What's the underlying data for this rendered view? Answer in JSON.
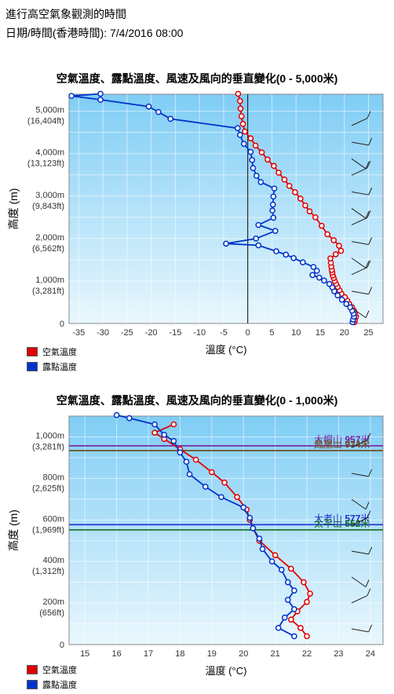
{
  "header": {
    "line1": "進行高空氣象觀測的時間",
    "line2": "日期/時間(香港時間): 7/4/2016 08:00"
  },
  "legend": {
    "air_temp": "空氣溫度",
    "dew_point": "露點溫度",
    "air_color": "#e00000",
    "dew_color": "#0033cc"
  },
  "chart_data": [
    {
      "type": "line",
      "title": "空氣溫度、露點溫度、風速及風向的垂直變化(0 - 5,000米)",
      "xlabel": "溫度 (°C)",
      "ylabel": "高度 (m)",
      "xlim": [
        -37,
        28
      ],
      "ylim": [
        0,
        5400
      ],
      "xticks": [
        -35,
        -30,
        -25,
        -20,
        -15,
        -10,
        -5,
        0,
        5,
        10,
        15,
        20,
        25
      ],
      "yticks": [
        {
          "value": 0,
          "label": "0"
        },
        {
          "value": 1000,
          "label": "1,000m",
          "sub": "(3,281ft)"
        },
        {
          "value": 2000,
          "label": "2,000m",
          "sub": "(6,562ft)"
        },
        {
          "value": 3000,
          "label": "3,000m",
          "sub": "(9,843ft)"
        },
        {
          "value": 4000,
          "label": "4,000m",
          "sub": "(13,123ft)"
        },
        {
          "value": 5000,
          "label": "5,000m",
          "sub": "(16,404ft)"
        }
      ],
      "series": [
        {
          "name": "空氣溫度",
          "color": "#e00000",
          "points": [
            [
              22.1,
              30
            ],
            [
              22.2,
              90
            ],
            [
              22.4,
              160
            ],
            [
              22.2,
              230
            ],
            [
              22.0,
              300
            ],
            [
              21.6,
              380
            ],
            [
              21.0,
              460
            ],
            [
              20.6,
              540
            ],
            [
              20.1,
              620
            ],
            [
              19.4,
              700
            ],
            [
              19.0,
              780
            ],
            [
              18.6,
              860
            ],
            [
              18.3,
              930
            ],
            [
              18.0,
              1000
            ],
            [
              17.8,
              1070
            ],
            [
              17.6,
              1130
            ],
            [
              17.5,
              1200
            ],
            [
              17.4,
              1260
            ],
            [
              17.3,
              1340
            ],
            [
              17.2,
              1430
            ],
            [
              17.1,
              1530
            ],
            [
              18.2,
              1630
            ],
            [
              19.3,
              1710
            ],
            [
              18.9,
              1830
            ],
            [
              17.8,
              1960
            ],
            [
              16.5,
              2100
            ],
            [
              15.3,
              2300
            ],
            [
              14.0,
              2500
            ],
            [
              12.8,
              2640
            ],
            [
              11.9,
              2780
            ],
            [
              10.9,
              2940
            ],
            [
              9.8,
              3090
            ],
            [
              8.6,
              3240
            ],
            [
              7.6,
              3390
            ],
            [
              6.4,
              3550
            ],
            [
              5.4,
              3710
            ],
            [
              4.1,
              3860
            ],
            [
              2.9,
              4030
            ],
            [
              1.6,
              4190
            ],
            [
              0.6,
              4360
            ],
            [
              -0.6,
              4520
            ],
            [
              -1.0,
              4700
            ],
            [
              -1.3,
              4880
            ],
            [
              -1.5,
              5060
            ],
            [
              -1.6,
              5240
            ],
            [
              -2.0,
              5410
            ]
          ]
        },
        {
          "name": "露點溫度",
          "color": "#0033cc",
          "points": [
            [
              21.7,
              30
            ],
            [
              21.8,
              90
            ],
            [
              22.0,
              160
            ],
            [
              21.9,
              230
            ],
            [
              21.6,
              300
            ],
            [
              21.2,
              380
            ],
            [
              20.4,
              460
            ],
            [
              19.5,
              560
            ],
            [
              18.6,
              660
            ],
            [
              17.9,
              760
            ],
            [
              17.5,
              850
            ],
            [
              16.9,
              930
            ],
            [
              15.8,
              1010
            ],
            [
              14.8,
              1080
            ],
            [
              13.4,
              1140
            ],
            [
              14.3,
              1240
            ],
            [
              13.6,
              1330
            ],
            [
              11.4,
              1440
            ],
            [
              9.5,
              1540
            ],
            [
              7.9,
              1620
            ],
            [
              5.9,
              1700
            ],
            [
              2.2,
              1840
            ],
            [
              -4.5,
              1880
            ],
            [
              1.7,
              2000
            ],
            [
              5.7,
              2180
            ],
            [
              2.2,
              2320
            ],
            [
              5.3,
              2490
            ],
            [
              5.1,
              2660
            ],
            [
              5.2,
              2800
            ],
            [
              5.3,
              2990
            ],
            [
              5.5,
              3180
            ],
            [
              2.7,
              3330
            ],
            [
              1.8,
              3480
            ],
            [
              1.1,
              3660
            ],
            [
              0.9,
              3850
            ],
            [
              0.6,
              4040
            ],
            [
              -0.8,
              4230
            ],
            [
              -1.6,
              4440
            ],
            [
              -2.1,
              4600
            ],
            [
              -16.0,
              4820
            ],
            [
              -18.5,
              4980
            ],
            [
              -20.5,
              5110
            ],
            [
              -30.5,
              5270
            ],
            [
              -36.5,
              5360
            ],
            [
              -30.5,
              5410
            ]
          ]
        }
      ],
      "wind_barbs": 12
    },
    {
      "type": "line",
      "title": "空氣溫度、露點溫度、風速及風向的垂直變化(0 - 1,000米)",
      "xlabel": "溫度 (°C)",
      "ylabel": "高度 (m)",
      "xlim": [
        14.5,
        24.4
      ],
      "ylim": [
        0,
        1100
      ],
      "xticks": [
        15,
        16,
        17,
        18,
        19,
        20,
        21,
        22,
        23,
        24
      ],
      "yticks": [
        {
          "value": 0,
          "label": "0"
        },
        {
          "value": 200,
          "label": "200m",
          "sub": "(656ft)"
        },
        {
          "value": 400,
          "label": "400m",
          "sub": "(1,312ft)"
        },
        {
          "value": 600,
          "label": "600m",
          "sub": "(1,969ft)"
        },
        {
          "value": 800,
          "label": "800m",
          "sub": "(2,625ft)"
        },
        {
          "value": 1000,
          "label": "1,000m",
          "sub": "(3,281ft)"
        }
      ],
      "reference_lines": [
        {
          "name": "大帽山",
          "height": 957,
          "label": "957米",
          "color": "#7a1fa0"
        },
        {
          "name": "鳳凰山",
          "height": 934,
          "label": "934米",
          "color": "#6b4a12"
        },
        {
          "name": "大老山",
          "height": 577,
          "label": "577米",
          "color": "#1a2fd0"
        },
        {
          "name": "太平山",
          "height": 552,
          "label": "552米",
          "color": "#0f6b1e"
        }
      ],
      "series": [
        {
          "name": "空氣溫度",
          "color": "#e00000",
          "points": [
            [
              22.0,
              40
            ],
            [
              21.8,
              80
            ],
            [
              21.5,
              120
            ],
            [
              21.7,
              160
            ],
            [
              22.0,
              205
            ],
            [
              22.1,
              245
            ],
            [
              21.9,
              300
            ],
            [
              21.5,
              365
            ],
            [
              21.0,
              430
            ],
            [
              20.5,
              500
            ],
            [
              20.3,
              560
            ],
            [
              20.2,
              600
            ],
            [
              20.1,
              650
            ],
            [
              19.8,
              710
            ],
            [
              19.4,
              780
            ],
            [
              19.0,
              830
            ],
            [
              18.5,
              890
            ],
            [
              18.0,
              940
            ],
            [
              17.5,
              990
            ],
            [
              17.2,
              1020
            ],
            [
              17.8,
              1060
            ]
          ]
        },
        {
          "name": "露點溫度",
          "color": "#0033cc",
          "points": [
            [
              21.6,
              40
            ],
            [
              21.1,
              80
            ],
            [
              21.3,
              130
            ],
            [
              21.6,
              170
            ],
            [
              21.4,
              215
            ],
            [
              21.6,
              260
            ],
            [
              21.4,
              300
            ],
            [
              21.2,
              360
            ],
            [
              20.9,
              400
            ],
            [
              20.6,
              460
            ],
            [
              20.5,
              510
            ],
            [
              20.3,
              560
            ],
            [
              20.2,
              610
            ],
            [
              20.0,
              660
            ],
            [
              19.3,
              710
            ],
            [
              18.8,
              760
            ],
            [
              18.3,
              820
            ],
            [
              18.2,
              880
            ],
            [
              18.0,
              925
            ],
            [
              17.8,
              980
            ],
            [
              17.5,
              1010
            ],
            [
              17.2,
              1060
            ],
            [
              16.4,
              1090
            ],
            [
              16.0,
              1105
            ]
          ]
        }
      ],
      "wind_barbs": 8
    }
  ]
}
